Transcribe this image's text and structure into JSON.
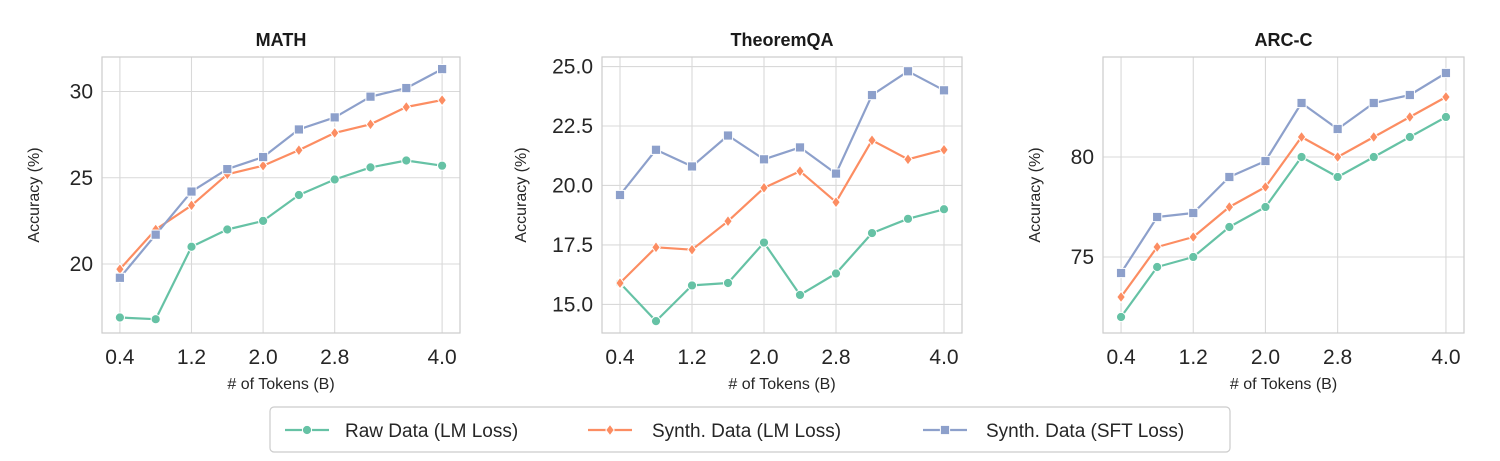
{
  "chart_data": [
    {
      "type": "line",
      "title": "MATH",
      "xlabel": "# of Tokens (B)",
      "ylabel": "Accuracy (%)",
      "x": [
        0.4,
        0.8,
        1.2,
        1.6,
        2.0,
        2.4,
        2.8,
        3.2,
        3.6,
        4.0
      ],
      "xticks": [
        0.4,
        1.2,
        2.0,
        2.8,
        4.0
      ],
      "xtick_labels": [
        "0.4",
        "1.2",
        "2.0",
        "2.8",
        "4.0"
      ],
      "yticks": [
        20,
        25,
        30
      ],
      "ytick_labels": [
        "20",
        "25",
        "30"
      ],
      "xlim": [
        0.2,
        4.2
      ],
      "ylim": [
        16.0,
        32.0
      ],
      "grid": true,
      "series": [
        {
          "name": "Raw Data (LM Loss)",
          "color": "#66c2a5",
          "marker": "circle",
          "values": [
            16.9,
            16.8,
            21.0,
            22.0,
            22.5,
            24.0,
            24.9,
            25.6,
            26.0,
            25.7
          ]
        },
        {
          "name": "Synth. Data (LM Loss)",
          "color": "#fc8d62",
          "marker": "diamond",
          "values": [
            19.7,
            22.0,
            23.4,
            25.2,
            25.7,
            26.6,
            27.6,
            28.1,
            29.1,
            29.5
          ]
        },
        {
          "name": "Synth. Data (SFT Loss)",
          "color": "#8da0cb",
          "marker": "square",
          "values": [
            19.2,
            21.7,
            24.2,
            25.5,
            26.2,
            27.8,
            28.5,
            29.7,
            30.2,
            31.3
          ]
        }
      ]
    },
    {
      "type": "line",
      "title": "TheoremQA",
      "xlabel": "# of Tokens (B)",
      "ylabel": "Accuracy (%)",
      "x": [
        0.4,
        0.8,
        1.2,
        1.6,
        2.0,
        2.4,
        2.8,
        3.2,
        3.6,
        4.0
      ],
      "xticks": [
        0.4,
        1.2,
        2.0,
        2.8,
        4.0
      ],
      "xtick_labels": [
        "0.4",
        "1.2",
        "2.0",
        "2.8",
        "4.0"
      ],
      "yticks": [
        15.0,
        17.5,
        20.0,
        22.5,
        25.0
      ],
      "ytick_labels": [
        "15.0",
        "17.5",
        "20.0",
        "22.5",
        "25.0"
      ],
      "xlim": [
        0.2,
        4.2
      ],
      "ylim": [
        13.8,
        25.4
      ],
      "grid": true,
      "series": [
        {
          "name": "Raw Data (LM Loss)",
          "color": "#66c2a5",
          "marker": "circle",
          "values": [
            15.9,
            14.3,
            15.8,
            15.9,
            17.6,
            15.4,
            16.3,
            18.0,
            18.6,
            19.0
          ]
        },
        {
          "name": "Synth. Data (LM Loss)",
          "color": "#fc8d62",
          "marker": "diamond",
          "values": [
            15.9,
            17.4,
            17.3,
            18.5,
            19.9,
            20.6,
            19.3,
            21.9,
            21.1,
            21.5
          ]
        },
        {
          "name": "Synth. Data (SFT Loss)",
          "color": "#8da0cb",
          "marker": "square",
          "values": [
            19.6,
            21.5,
            20.8,
            22.1,
            21.1,
            21.6,
            20.5,
            23.8,
            24.8,
            24.0
          ]
        }
      ]
    },
    {
      "type": "line",
      "title": "ARC-C",
      "xlabel": "# of Tokens (B)",
      "ylabel": "Accuracy (%)",
      "x": [
        0.4,
        0.8,
        1.2,
        1.6,
        2.0,
        2.4,
        2.8,
        3.2,
        3.6,
        4.0
      ],
      "xticks": [
        0.4,
        1.2,
        2.0,
        2.8,
        4.0
      ],
      "xtick_labels": [
        "0.4",
        "1.2",
        "2.0",
        "2.8",
        "4.0"
      ],
      "yticks": [
        75,
        80
      ],
      "ytick_labels": [
        "75",
        "80"
      ],
      "xlim": [
        0.2,
        4.2
      ],
      "ylim": [
        71.2,
        85.0
      ],
      "grid": true,
      "series": [
        {
          "name": "Raw Data (LM Loss)",
          "color": "#66c2a5",
          "marker": "circle",
          "values": [
            72.0,
            74.5,
            75.0,
            76.5,
            77.5,
            80.0,
            79.0,
            80.0,
            81.0,
            82.0
          ]
        },
        {
          "name": "Synth. Data (LM Loss)",
          "color": "#fc8d62",
          "marker": "diamond",
          "values": [
            73.0,
            75.5,
            76.0,
            77.5,
            78.5,
            81.0,
            80.0,
            81.0,
            82.0,
            83.0
          ]
        },
        {
          "name": "Synth. Data (SFT Loss)",
          "color": "#8da0cb",
          "marker": "square",
          "values": [
            74.2,
            77.0,
            77.2,
            79.0,
            79.8,
            82.7,
            81.4,
            82.7,
            83.1,
            84.2
          ]
        }
      ]
    }
  ],
  "legend": {
    "placement": "bottom-center",
    "items": [
      {
        "label": "Raw Data (LM Loss)",
        "color": "#66c2a5",
        "marker": "circle"
      },
      {
        "label": "Synth. Data (LM Loss)",
        "color": "#fc8d62",
        "marker": "diamond"
      },
      {
        "label": "Synth. Data (SFT Loss)",
        "color": "#8da0cb",
        "marker": "square"
      }
    ]
  }
}
